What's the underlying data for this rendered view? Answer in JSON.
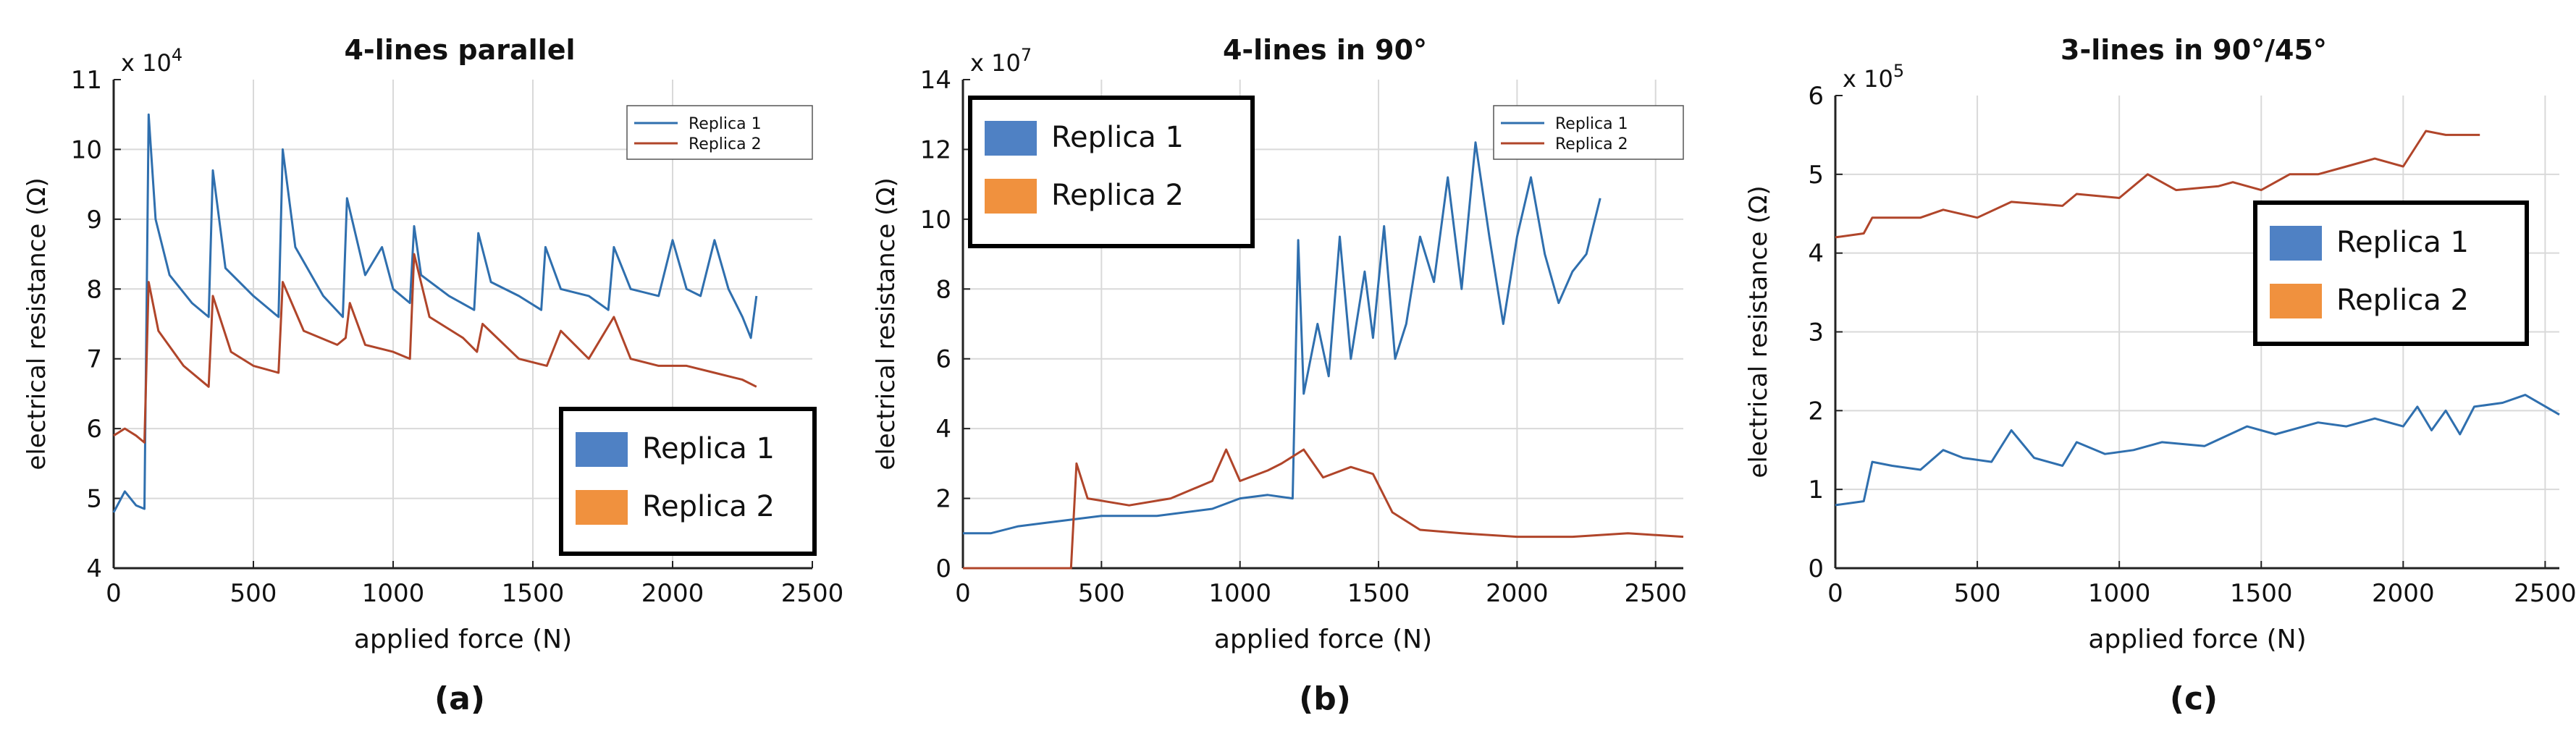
{
  "chart_data": [
    {
      "type": "line",
      "panel_label": "(a)",
      "title": "4-lines parallel",
      "xlabel": "applied force (N)",
      "ylabel": "electrical resistance (Ω)",
      "exponent_label": "x 10",
      "exponent_power": "4",
      "xlim": [
        0,
        2500
      ],
      "ylim": [
        4,
        11
      ],
      "xticks": [
        0,
        500,
        1000,
        1500,
        2000,
        2500
      ],
      "yticks": [
        4,
        5,
        6,
        7,
        8,
        9,
        10,
        11
      ],
      "xtick_labels": [
        "0",
        "500",
        "1000",
        "1500",
        "2000",
        "2500"
      ],
      "ytick_labels": [
        "4",
        "5",
        "6",
        "7",
        "8",
        "9",
        "10",
        "11"
      ],
      "grid": true,
      "small_legend": {
        "placement": "top-right",
        "entries": [
          "Replica 1",
          "Replica 2"
        ]
      },
      "big_legend": {
        "placement": "bottom-right",
        "entries": [
          "Replica 1",
          "Replica 2"
        ]
      },
      "series": [
        {
          "name": "Replica 1",
          "color": "#2f6fae",
          "points": [
            [
              0,
              4.8
            ],
            [
              40,
              5.1
            ],
            [
              80,
              4.9
            ],
            [
              110,
              4.85
            ],
            [
              125,
              10.5
            ],
            [
              150,
              9.0
            ],
            [
              200,
              8.2
            ],
            [
              280,
              7.8
            ],
            [
              340,
              7.6
            ],
            [
              355,
              9.7
            ],
            [
              400,
              8.3
            ],
            [
              500,
              7.9
            ],
            [
              590,
              7.6
            ],
            [
              605,
              10.0
            ],
            [
              650,
              8.6
            ],
            [
              750,
              7.9
            ],
            [
              820,
              7.6
            ],
            [
              835,
              9.3
            ],
            [
              900,
              8.2
            ],
            [
              960,
              8.6
            ],
            [
              1000,
              8.0
            ],
            [
              1060,
              7.8
            ],
            [
              1075,
              8.9
            ],
            [
              1100,
              8.2
            ],
            [
              1200,
              7.9
            ],
            [
              1290,
              7.7
            ],
            [
              1305,
              8.8
            ],
            [
              1350,
              8.1
            ],
            [
              1450,
              7.9
            ],
            [
              1530,
              7.7
            ],
            [
              1545,
              8.6
            ],
            [
              1600,
              8.0
            ],
            [
              1700,
              7.9
            ],
            [
              1770,
              7.7
            ],
            [
              1790,
              8.6
            ],
            [
              1850,
              8.0
            ],
            [
              1950,
              7.9
            ],
            [
              2000,
              8.7
            ],
            [
              2050,
              8.0
            ],
            [
              2100,
              7.9
            ],
            [
              2150,
              8.7
            ],
            [
              2200,
              8.0
            ],
            [
              2250,
              7.6
            ],
            [
              2280,
              7.3
            ],
            [
              2300,
              7.9
            ]
          ]
        },
        {
          "name": "Replica 2",
          "color": "#b0452a",
          "points": [
            [
              0,
              5.9
            ],
            [
              40,
              6.0
            ],
            [
              80,
              5.9
            ],
            [
              110,
              5.8
            ],
            [
              125,
              8.1
            ],
            [
              160,
              7.4
            ],
            [
              250,
              6.9
            ],
            [
              340,
              6.6
            ],
            [
              355,
              7.9
            ],
            [
              420,
              7.1
            ],
            [
              500,
              6.9
            ],
            [
              590,
              6.8
            ],
            [
              605,
              8.1
            ],
            [
              680,
              7.4
            ],
            [
              800,
              7.2
            ],
            [
              830,
              7.3
            ],
            [
              845,
              7.8
            ],
            [
              900,
              7.2
            ],
            [
              1000,
              7.1
            ],
            [
              1060,
              7.0
            ],
            [
              1075,
              8.5
            ],
            [
              1130,
              7.6
            ],
            [
              1250,
              7.3
            ],
            [
              1300,
              7.1
            ],
            [
              1320,
              7.5
            ],
            [
              1450,
              7.0
            ],
            [
              1550,
              6.9
            ],
            [
              1600,
              7.4
            ],
            [
              1700,
              7.0
            ],
            [
              1790,
              7.6
            ],
            [
              1850,
              7.0
            ],
            [
              1950,
              6.9
            ],
            [
              2050,
              6.9
            ],
            [
              2150,
              6.8
            ],
            [
              2250,
              6.7
            ],
            [
              2300,
              6.6
            ]
          ]
        }
      ]
    },
    {
      "type": "line",
      "panel_label": "(b)",
      "title": "4-lines in 90°",
      "xlabel": "applied force (N)",
      "ylabel": "electrical resistance (Ω)",
      "exponent_label": "x 10",
      "exponent_power": "7",
      "xlim": [
        0,
        2600
      ],
      "ylim": [
        0,
        14
      ],
      "xticks": [
        0,
        500,
        1000,
        1500,
        2000,
        2500
      ],
      "yticks": [
        0,
        2,
        4,
        6,
        8,
        10,
        12,
        14
      ],
      "xtick_labels": [
        "0",
        "500",
        "1000",
        "1500",
        "2000",
        "2500"
      ],
      "ytick_labels": [
        "0",
        "2",
        "4",
        "6",
        "8",
        "10",
        "12",
        "14"
      ],
      "grid": true,
      "small_legend": {
        "placement": "top-right",
        "entries": [
          "Replica 1",
          "Replica 2"
        ]
      },
      "big_legend": {
        "placement": "top-left",
        "entries": [
          "Replica 1",
          "Replica 2"
        ]
      },
      "series": [
        {
          "name": "Replica 1",
          "color": "#2f6fae",
          "points": [
            [
              0,
              1.0
            ],
            [
              100,
              1.0
            ],
            [
              200,
              1.2
            ],
            [
              300,
              1.3
            ],
            [
              400,
              1.4
            ],
            [
              500,
              1.5
            ],
            [
              700,
              1.5
            ],
            [
              900,
              1.7
            ],
            [
              1000,
              2.0
            ],
            [
              1100,
              2.1
            ],
            [
              1190,
              2.0
            ],
            [
              1210,
              9.4
            ],
            [
              1230,
              5.0
            ],
            [
              1280,
              7.0
            ],
            [
              1320,
              5.5
            ],
            [
              1360,
              9.5
            ],
            [
              1400,
              6.0
            ],
            [
              1450,
              8.5
            ],
            [
              1480,
              6.6
            ],
            [
              1520,
              9.8
            ],
            [
              1560,
              6.0
            ],
            [
              1600,
              7.0
            ],
            [
              1650,
              9.5
            ],
            [
              1700,
              8.2
            ],
            [
              1750,
              11.2
            ],
            [
              1800,
              8.0
            ],
            [
              1850,
              12.2
            ],
            [
              1900,
              9.5
            ],
            [
              1950,
              7.0
            ],
            [
              2000,
              9.5
            ],
            [
              2050,
              11.2
            ],
            [
              2100,
              9.0
            ],
            [
              2150,
              7.6
            ],
            [
              2200,
              8.5
            ],
            [
              2250,
              9.0
            ],
            [
              2300,
              10.6
            ]
          ]
        },
        {
          "name": "Replica 2",
          "color": "#b0452a",
          "points": [
            [
              0,
              0.0
            ],
            [
              390,
              0.0
            ],
            [
              410,
              3.0
            ],
            [
              450,
              2.0
            ],
            [
              600,
              1.8
            ],
            [
              750,
              2.0
            ],
            [
              900,
              2.5
            ],
            [
              950,
              3.4
            ],
            [
              1000,
              2.5
            ],
            [
              1100,
              2.8
            ],
            [
              1150,
              3.0
            ],
            [
              1230,
              3.4
            ],
            [
              1300,
              2.6
            ],
            [
              1400,
              2.9
            ],
            [
              1480,
              2.7
            ],
            [
              1550,
              1.6
            ],
            [
              1650,
              1.1
            ],
            [
              1800,
              1.0
            ],
            [
              2000,
              0.9
            ],
            [
              2200,
              0.9
            ],
            [
              2400,
              1.0
            ],
            [
              2600,
              0.9
            ]
          ]
        }
      ]
    },
    {
      "type": "line",
      "panel_label": "(c)",
      "title": "3-lines in 90°/45°",
      "xlabel": "applied force (N)",
      "ylabel": "electrical resistance (Ω)",
      "exponent_label": "x 10",
      "exponent_power": "5",
      "xlim": [
        0,
        2550
      ],
      "ylim": [
        0,
        6
      ],
      "xticks": [
        0,
        500,
        1000,
        1500,
        2000,
        2500
      ],
      "yticks": [
        0,
        1,
        2,
        3,
        4,
        5,
        6
      ],
      "xtick_labels": [
        "0",
        "500",
        "1000",
        "1500",
        "2000",
        "2500"
      ],
      "ytick_labels": [
        "0",
        "1",
        "2",
        "3",
        "4",
        "5",
        "6"
      ],
      "grid": true,
      "small_legend": null,
      "big_legend": {
        "placement": "top-right",
        "entries": [
          "Replica 1",
          "Replica 2"
        ]
      },
      "series": [
        {
          "name": "Replica 1",
          "color": "#2f6fae",
          "points": [
            [
              0,
              0.8
            ],
            [
              100,
              0.85
            ],
            [
              130,
              1.35
            ],
            [
              200,
              1.3
            ],
            [
              300,
              1.25
            ],
            [
              380,
              1.5
            ],
            [
              450,
              1.4
            ],
            [
              550,
              1.35
            ],
            [
              620,
              1.75
            ],
            [
              700,
              1.4
            ],
            [
              800,
              1.3
            ],
            [
              850,
              1.6
            ],
            [
              950,
              1.45
            ],
            [
              1050,
              1.5
            ],
            [
              1150,
              1.6
            ],
            [
              1300,
              1.55
            ],
            [
              1450,
              1.8
            ],
            [
              1550,
              1.7
            ],
            [
              1700,
              1.85
            ],
            [
              1800,
              1.8
            ],
            [
              1900,
              1.9
            ],
            [
              2000,
              1.8
            ],
            [
              2050,
              2.05
            ],
            [
              2100,
              1.75
            ],
            [
              2150,
              2.0
            ],
            [
              2200,
              1.7
            ],
            [
              2250,
              2.05
            ],
            [
              2350,
              2.1
            ],
            [
              2430,
              2.2
            ],
            [
              2550,
              1.95
            ]
          ]
        },
        {
          "name": "Replica 2",
          "color": "#b0452a",
          "points": [
            [
              0,
              4.2
            ],
            [
              100,
              4.25
            ],
            [
              130,
              4.45
            ],
            [
              300,
              4.45
            ],
            [
              380,
              4.55
            ],
            [
              500,
              4.45
            ],
            [
              620,
              4.65
            ],
            [
              800,
              4.6
            ],
            [
              850,
              4.75
            ],
            [
              1000,
              4.7
            ],
            [
              1100,
              5.0
            ],
            [
              1200,
              4.8
            ],
            [
              1350,
              4.85
            ],
            [
              1400,
              4.9
            ],
            [
              1500,
              4.8
            ],
            [
              1600,
              5.0
            ],
            [
              1700,
              5.0
            ],
            [
              1800,
              5.1
            ],
            [
              1900,
              5.2
            ],
            [
              2000,
              5.1
            ],
            [
              2080,
              5.55
            ],
            [
              2150,
              5.5
            ],
            [
              2270,
              5.5
            ]
          ]
        }
      ]
    }
  ]
}
